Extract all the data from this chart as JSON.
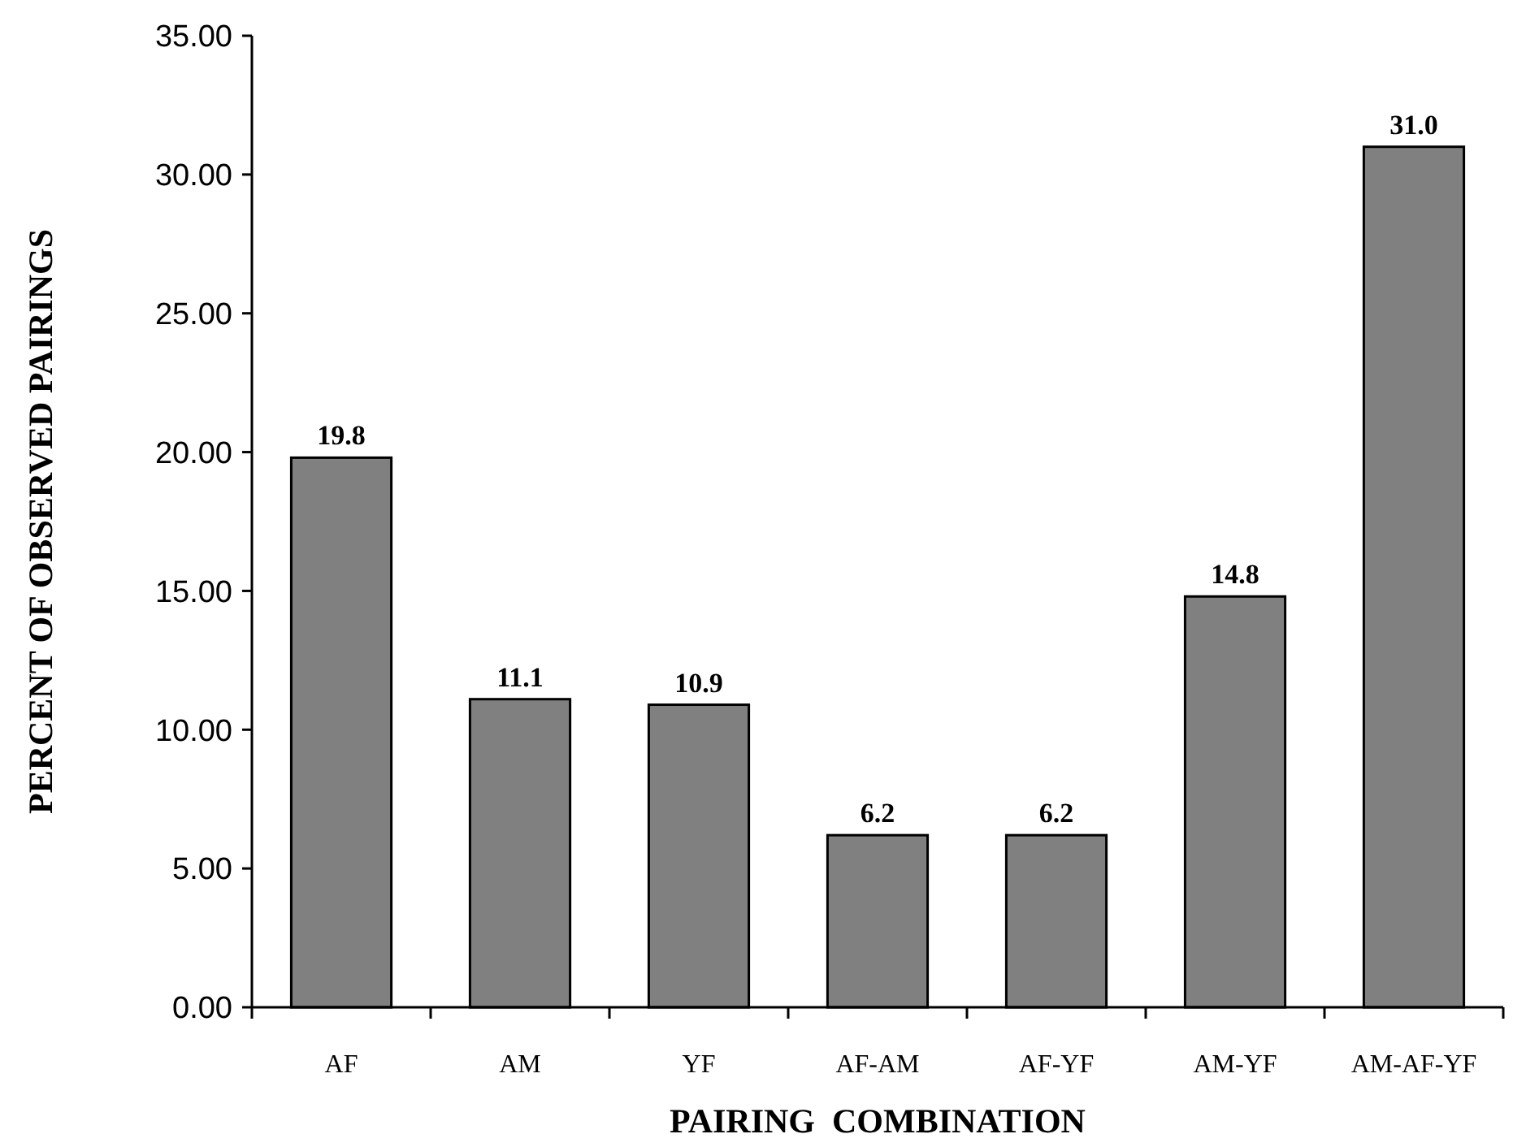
{
  "chart_data": {
    "type": "bar",
    "xlabel": "PAIRING  COMBINATION",
    "ylabel": "PERCENT OF OBSERVED PAIRINGS",
    "categories": [
      "AF",
      "AM",
      "YF",
      "AF-AM",
      "AF-YF",
      "AM-YF",
      "AM-AF-YF"
    ],
    "values": [
      19.8,
      11.1,
      10.9,
      6.2,
      6.2,
      14.8,
      31.0
    ],
    "value_labels": [
      "19.8",
      "11.1",
      "10.9",
      "6.2",
      "6.2",
      "14.8",
      "31.0"
    ],
    "color": "#808080",
    "ylim": [
      0,
      35
    ],
    "yticks": [
      {
        "value": 0,
        "label": "0.00"
      },
      {
        "value": 5,
        "label": "5.00"
      },
      {
        "value": 10,
        "label": "10.00"
      },
      {
        "value": 15,
        "label": "15.00"
      },
      {
        "value": 20,
        "label": "20.00"
      },
      {
        "value": 25,
        "label": "25.00"
      },
      {
        "value": 30,
        "label": "30.00"
      },
      {
        "value": 35,
        "label": "35.00"
      }
    ],
    "grid": false
  }
}
